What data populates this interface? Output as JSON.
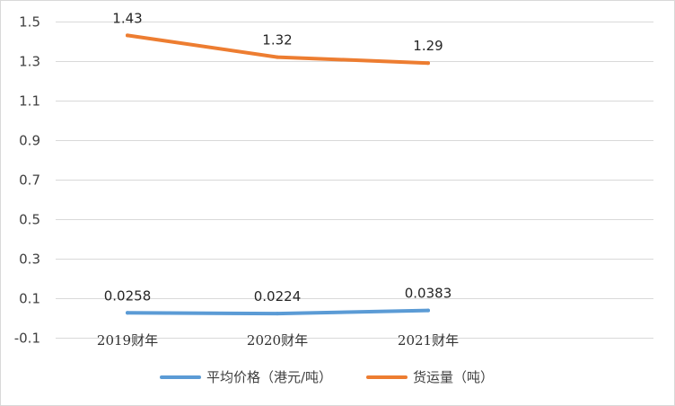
{
  "chart_data": {
    "type": "line",
    "title": "",
    "xlabel": "",
    "ylabel": "",
    "categories": [
      "2019财年",
      "2020财年",
      "2021财年"
    ],
    "ylim": [
      -0.1,
      1.5
    ],
    "yticks": [
      -0.1,
      0.1,
      0.3,
      0.5,
      0.7,
      0.9,
      1.1,
      1.3,
      1.5
    ],
    "ytick_labels": [
      "-0.1",
      "0.1",
      "0.3",
      "0.5",
      "0.7",
      "0.9",
      "1.1",
      "1.3",
      "1.5"
    ],
    "grid": true,
    "legend_position": "bottom",
    "series": [
      {
        "name": "平均价格（港元/吨）",
        "values": [
          0.0258,
          0.0224,
          0.0383
        ],
        "labels": [
          "0.0258",
          "0.0224",
          "0.0383"
        ],
        "color": "#5b9bd5"
      },
      {
        "name": "货运量（吨）",
        "values": [
          1.43,
          1.32,
          1.29
        ],
        "labels": [
          "1.43",
          "1.32",
          "1.29"
        ],
        "color": "#ed7d31"
      }
    ]
  }
}
